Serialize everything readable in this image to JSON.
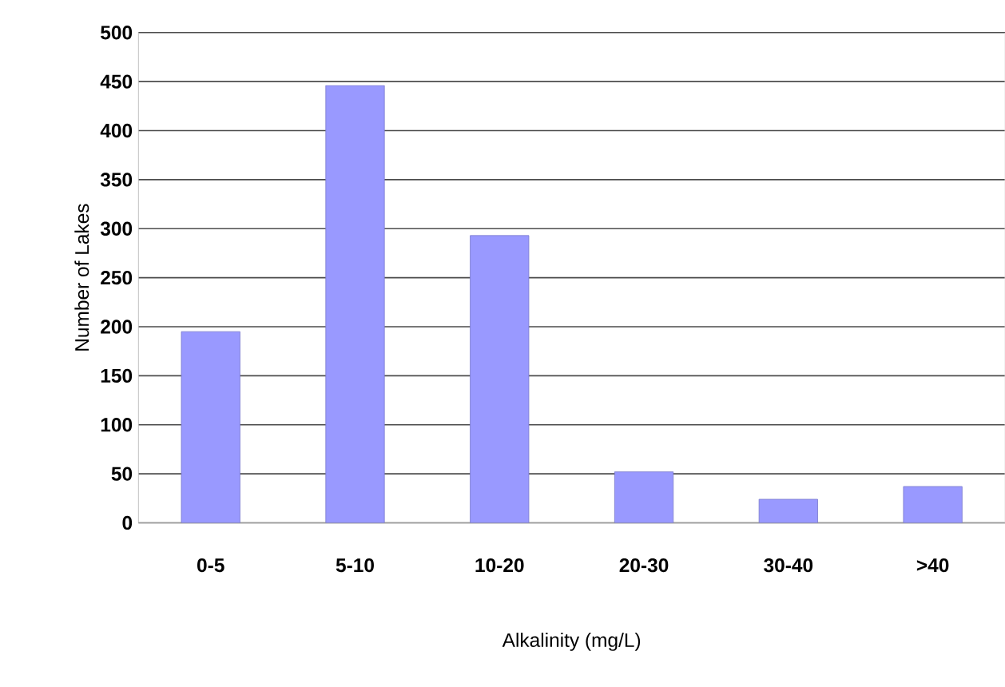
{
  "chart_data": {
    "type": "bar",
    "xlabel": "Alkalinity (mg/L)",
    "ylabel": "Number of Lakes",
    "categories": [
      "0-5",
      "5-10",
      "10-20",
      "20-30",
      "30-40",
      ">40"
    ],
    "values": [
      195,
      446,
      293,
      52,
      24,
      37
    ],
    "color": "#9999ff",
    "ylim": [
      0,
      500
    ],
    "yticks": [
      0,
      50,
      100,
      150,
      200,
      250,
      300,
      350,
      400,
      450,
      500
    ],
    "grid": "y"
  }
}
